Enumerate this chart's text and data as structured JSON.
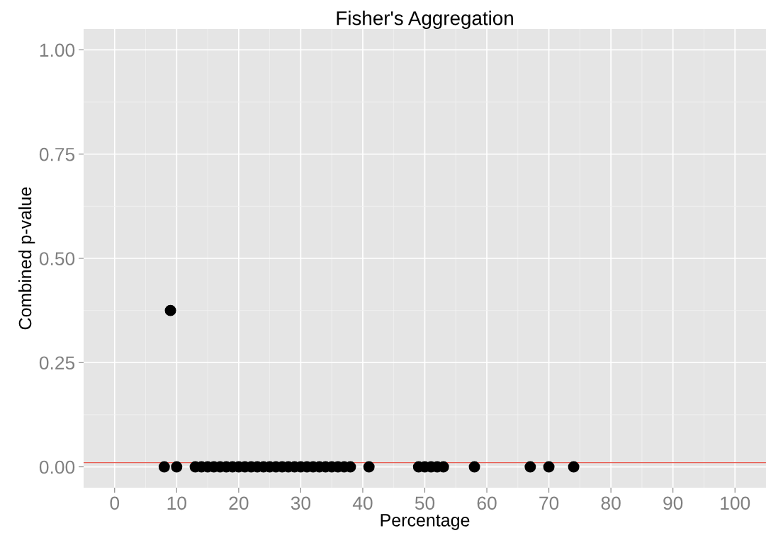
{
  "chart_data": {
    "type": "scatter",
    "title": "Fisher's Aggregation",
    "xlabel": "Percentage",
    "ylabel": "Combined p-value",
    "x": [
      8,
      9,
      10,
      13,
      14,
      15,
      16,
      17,
      18,
      19,
      20,
      21,
      22,
      23,
      24,
      25,
      26,
      27,
      28,
      29,
      30,
      31,
      32,
      33,
      34,
      35,
      36,
      37,
      38,
      41,
      49,
      50,
      51,
      52,
      53,
      58,
      67,
      70,
      74
    ],
    "series": [
      {
        "color": "#000000",
        "values": [
          0,
          0.375,
          0,
          0,
          0,
          0,
          0,
          0,
          0,
          0,
          0,
          0,
          0,
          0,
          0,
          0,
          0,
          0,
          0,
          0,
          0,
          0,
          0,
          0,
          0,
          0,
          0,
          0,
          0,
          0,
          0,
          0,
          0,
          0,
          0,
          0,
          0,
          0,
          0
        ]
      }
    ],
    "marker": "circle",
    "xlim": [
      -5,
      105
    ],
    "xticks": [
      0,
      10,
      20,
      30,
      40,
      50,
      60,
      70,
      80,
      90,
      100
    ],
    "ylim": [
      -0.05,
      1.05
    ],
    "yticks": [
      {
        "value": 0,
        "label": "0.00"
      },
      {
        "value": 0.25,
        "label": "0.25"
      },
      {
        "value": 0.5,
        "label": "0.50"
      },
      {
        "value": 0.75,
        "label": "0.75"
      },
      {
        "value": 1,
        "label": "1.00"
      }
    ],
    "ref_lines": [
      {
        "axis": "y",
        "value": 0.01,
        "color": "#e8594f"
      }
    ],
    "grid": true
  }
}
